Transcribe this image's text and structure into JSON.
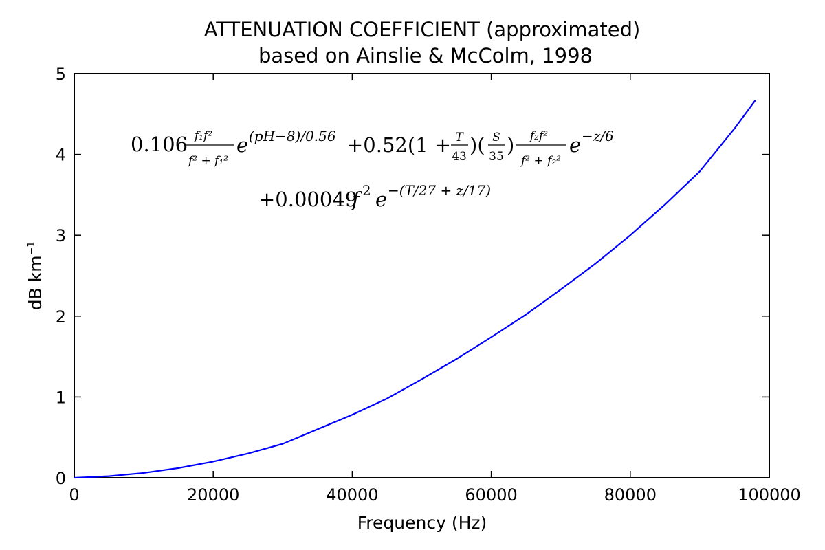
{
  "chart_data": {
    "type": "line",
    "title_line1": "ATTENUATION COEFFICIENT (approximated)",
    "title_line2": "based on Ainslie & McColm, 1998",
    "xlabel": "Frequency (Hz)",
    "ylabel_base": "dB km",
    "ylabel_sup": "−1",
    "xlim": [
      0,
      100000
    ],
    "ylim": [
      0,
      5
    ],
    "xticks": [
      0,
      20000,
      40000,
      60000,
      80000,
      100000
    ],
    "yticks": [
      0,
      1,
      2,
      3,
      4,
      5
    ],
    "grid": false,
    "line_color": "#0000ff",
    "series": [
      {
        "x": [
          0,
          5000,
          10000,
          15000,
          20000,
          25000,
          30000,
          35000,
          40000,
          45000,
          50000,
          55000,
          60000,
          65000,
          70000,
          75000,
          80000,
          85000,
          90000,
          95000,
          98000
        ],
        "y": [
          0,
          0.02,
          0.06,
          0.12,
          0.2,
          0.3,
          0.42,
          0.6,
          0.78,
          0.98,
          1.22,
          1.47,
          1.74,
          2.02,
          2.33,
          2.65,
          3.0,
          3.38,
          3.79,
          4.32,
          4.67
        ]
      }
    ],
    "annotation": {
      "line1": {
        "c1": "0.106",
        "f1_num": "f₁f²",
        "f1_den": "f² + f₁²",
        "exp1_base": "e",
        "exp1_sup": "(pH−8)/0.56",
        "c2": "+0.52(1 +",
        "t_num": "T",
        "t_den": "43",
        "paren_mid": ")(",
        "s_num": "S",
        "s_den": "35",
        "paren_end": ")",
        "f2_num": "f₂f²",
        "f2_den": "f² + f₂²",
        "exp2_base": "e",
        "exp2_sup": "−z/6"
      },
      "line2": {
        "c3": "+0.00049",
        "f3": "f",
        "f3_sup": "2",
        "exp3_base": "e",
        "exp3_sup": "−(T/27 + z/17)"
      }
    }
  }
}
